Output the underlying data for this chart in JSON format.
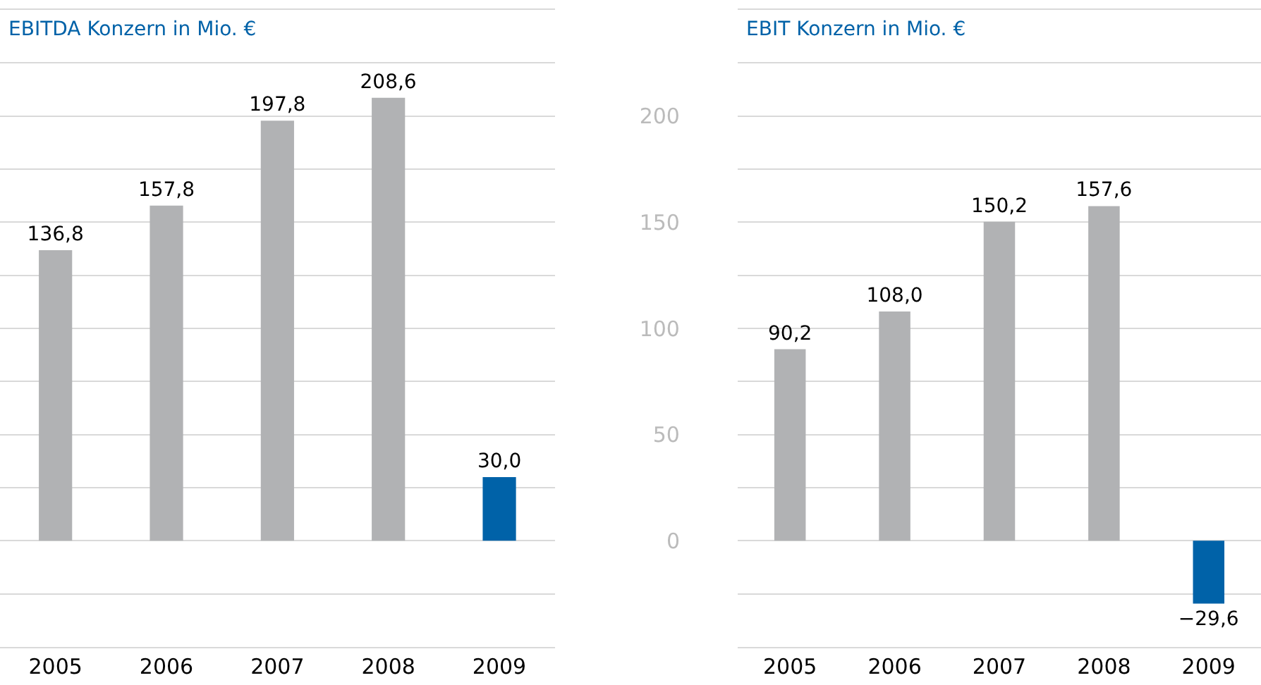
{
  "chart_data": [
    {
      "type": "bar",
      "title": "EBITDA Konzern in Mio. €",
      "categories": [
        "2005",
        "2006",
        "2007",
        "2008",
        "2009"
      ],
      "values": [
        136.8,
        157.8,
        197.8,
        208.6,
        30.0
      ],
      "colors": [
        "#b1b2b4",
        "#b1b2b4",
        "#b1b2b4",
        "#b1b2b4",
        "#0062a8"
      ],
      "value_labels": [
        "136,8",
        "157,8",
        "197,8",
        "208,6",
        "30,0"
      ],
      "ylim": [
        -50,
        250
      ],
      "yticks": [
        {
          "value": -25,
          "label": null
        },
        {
          "value": 0,
          "label": null
        },
        {
          "value": 25,
          "label": null
        },
        {
          "value": 50,
          "label": null
        },
        {
          "value": 75,
          "label": null
        },
        {
          "value": 100,
          "label": null
        },
        {
          "value": 125,
          "label": null
        },
        {
          "value": 150,
          "label": null
        },
        {
          "value": 175,
          "label": null
        },
        {
          "value": 200,
          "label": null
        },
        {
          "value": 225,
          "label": null
        }
      ],
      "grid": "y",
      "tick_labels": "x"
    },
    {
      "type": "bar",
      "title": "EBIT Konzern in Mio. €",
      "categories": [
        "2005",
        "2006",
        "2007",
        "2008",
        "2009"
      ],
      "values": [
        90.2,
        108.0,
        150.2,
        157.6,
        -29.6
      ],
      "colors": [
        "#b1b2b4",
        "#b1b2b4",
        "#b1b2b4",
        "#b1b2b4",
        "#0062a8"
      ],
      "value_labels": [
        "90,2",
        "108,0",
        "150,2",
        "157,6",
        "−29,6"
      ],
      "ylim": [
        -50,
        250
      ],
      "yticks": [
        {
          "value": -25,
          "label": null
        },
        0,
        {
          "value": 25,
          "label": null
        },
        50,
        {
          "value": 75,
          "label": null
        },
        100,
        {
          "value": 125,
          "label": null
        },
        150,
        {
          "value": 175,
          "label": null
        },
        200,
        {
          "value": 225,
          "label": null
        }
      ],
      "grid": "y"
    }
  ]
}
